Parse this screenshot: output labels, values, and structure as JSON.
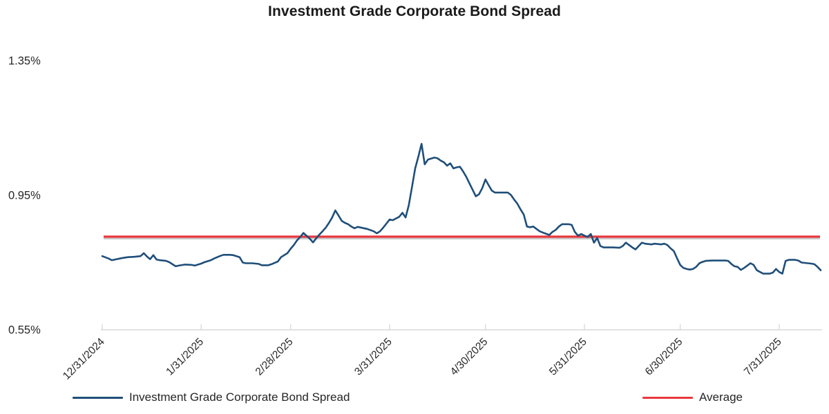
{
  "chart_data": {
    "type": "line",
    "title": "Investment Grade Corporate Bond Spread",
    "legend_position": "bottom",
    "grid": false,
    "x_axis": {
      "type": "date",
      "tick_labels": [
        "12/31/2024",
        "1/31/2025",
        "2/28/2025",
        "3/31/2025",
        "4/30/2025",
        "5/31/2025",
        "6/30/2025",
        "7/31/2025"
      ],
      "range": [
        "12/31/2024",
        "8/13/2025"
      ]
    },
    "y_axis": {
      "unit": "%",
      "ylim": [
        0.55,
        1.35
      ],
      "ticks": [
        {
          "label": "1.35%",
          "value": 1.35
        },
        {
          "label": "0.95%",
          "value": 0.95
        },
        {
          "label": "0.55%",
          "value": 0.55
        }
      ]
    },
    "series": [
      {
        "name": "Investment Grade Corporate Bond Spread",
        "color": "#1f4e79",
        "points": [
          [
            "12/31/2024",
            0.769
          ],
          [
            "1/2/2025",
            0.762
          ],
          [
            "1/3/2025",
            0.757
          ],
          [
            "1/4/2025",
            0.759
          ],
          [
            "1/6/2025",
            0.763
          ],
          [
            "1/8/2025",
            0.766
          ],
          [
            "1/10/2025",
            0.767
          ],
          [
            "1/12/2025",
            0.769
          ],
          [
            "1/13/2025",
            0.778
          ],
          [
            "1/14/2025",
            0.768
          ],
          [
            "1/15/2025",
            0.76
          ],
          [
            "1/16/2025",
            0.772
          ],
          [
            "1/17/2025",
            0.759
          ],
          [
            "1/18/2025",
            0.757
          ],
          [
            "1/20/2025",
            0.755
          ],
          [
            "1/21/2025",
            0.751
          ],
          [
            "1/23/2025",
            0.739
          ],
          [
            "1/24/2025",
            0.741
          ],
          [
            "1/26/2025",
            0.744
          ],
          [
            "1/28/2025",
            0.743
          ],
          [
            "1/29/2025",
            0.741
          ],
          [
            "1/31/2025",
            0.747
          ],
          [
            "2/1/2025",
            0.751
          ],
          [
            "2/3/2025",
            0.757
          ],
          [
            "2/4/2025",
            0.762
          ],
          [
            "2/6/2025",
            0.77
          ],
          [
            "2/7/2025",
            0.773
          ],
          [
            "2/9/2025",
            0.773
          ],
          [
            "2/10/2025",
            0.772
          ],
          [
            "2/12/2025",
            0.766
          ],
          [
            "2/13/2025",
            0.75
          ],
          [
            "2/14/2025",
            0.748
          ],
          [
            "2/16/2025",
            0.748
          ],
          [
            "2/18/2025",
            0.746
          ],
          [
            "2/19/2025",
            0.742
          ],
          [
            "2/21/2025",
            0.742
          ],
          [
            "2/22/2025",
            0.745
          ],
          [
            "2/24/2025",
            0.753
          ],
          [
            "2/25/2025",
            0.766
          ],
          [
            "2/27/2025",
            0.778
          ],
          [
            "2/28/2025",
            0.791
          ],
          [
            "3/1/2025",
            0.802
          ],
          [
            "3/2/2025",
            0.816
          ],
          [
            "3/3/2025",
            0.826
          ],
          [
            "3/4/2025",
            0.838
          ],
          [
            "3/6/2025",
            0.821
          ],
          [
            "3/7/2025",
            0.81
          ],
          [
            "3/8/2025",
            0.822
          ],
          [
            "3/9/2025",
            0.833
          ],
          [
            "3/10/2025",
            0.843
          ],
          [
            "3/11/2025",
            0.854
          ],
          [
            "3/12/2025",
            0.868
          ],
          [
            "3/13/2025",
            0.884
          ],
          [
            "3/14/2025",
            0.905
          ],
          [
            "3/15/2025",
            0.89
          ],
          [
            "3/16/2025",
            0.874
          ],
          [
            "3/17/2025",
            0.868
          ],
          [
            "3/18/2025",
            0.864
          ],
          [
            "3/19/2025",
            0.857
          ],
          [
            "3/20/2025",
            0.852
          ],
          [
            "3/21/2025",
            0.856
          ],
          [
            "3/22/2025",
            0.854
          ],
          [
            "3/23/2025",
            0.852
          ],
          [
            "3/24/2025",
            0.85
          ],
          [
            "3/26/2025",
            0.843
          ],
          [
            "3/27/2025",
            0.837
          ],
          [
            "3/28/2025",
            0.843
          ],
          [
            "3/29/2025",
            0.854
          ],
          [
            "3/30/2025",
            0.866
          ],
          [
            "3/31/2025",
            0.878
          ],
          [
            "4/1/2025",
            0.876
          ],
          [
            "4/2/2025",
            0.881
          ],
          [
            "4/3/2025",
            0.886
          ],
          [
            "4/4/2025",
            0.898
          ],
          [
            "4/5/2025",
            0.884
          ],
          [
            "4/6/2025",
            0.92
          ],
          [
            "4/7/2025",
            0.975
          ],
          [
            "4/8/2025",
            1.03
          ],
          [
            "4/9/2025",
            1.065
          ],
          [
            "4/10/2025",
            1.103
          ],
          [
            "4/11/2025",
            1.042
          ],
          [
            "4/12/2025",
            1.056
          ],
          [
            "4/14/2025",
            1.062
          ],
          [
            "4/15/2025",
            1.06
          ],
          [
            "4/16/2025",
            1.053
          ],
          [
            "4/17/2025",
            1.048
          ],
          [
            "4/18/2025",
            1.038
          ],
          [
            "4/19/2025",
            1.045
          ],
          [
            "4/20/2025",
            1.03
          ],
          [
            "4/21/2025",
            1.033
          ],
          [
            "4/22/2025",
            1.035
          ],
          [
            "4/23/2025",
            1.021
          ],
          [
            "4/24/2025",
            1.005
          ],
          [
            "4/25/2025",
            0.985
          ],
          [
            "4/26/2025",
            0.966
          ],
          [
            "4/27/2025",
            0.947
          ],
          [
            "4/28/2025",
            0.953
          ],
          [
            "4/29/2025",
            0.971
          ],
          [
            "4/30/2025",
            0.997
          ],
          [
            "5/1/2025",
            0.98
          ],
          [
            "5/2/2025",
            0.964
          ],
          [
            "5/3/2025",
            0.958
          ],
          [
            "5/5/2025",
            0.958
          ],
          [
            "5/7/2025",
            0.958
          ],
          [
            "5/8/2025",
            0.951
          ],
          [
            "5/9/2025",
            0.937
          ],
          [
            "5/10/2025",
            0.925
          ],
          [
            "5/11/2025",
            0.908
          ],
          [
            "5/12/2025",
            0.893
          ],
          [
            "5/13/2025",
            0.857
          ],
          [
            "5/14/2025",
            0.855
          ],
          [
            "5/15/2025",
            0.857
          ],
          [
            "5/16/2025",
            0.85
          ],
          [
            "5/17/2025",
            0.843
          ],
          [
            "5/18/2025",
            0.839
          ],
          [
            "5/20/2025",
            0.832
          ],
          [
            "5/21/2025",
            0.841
          ],
          [
            "5/22/2025",
            0.847
          ],
          [
            "5/23/2025",
            0.857
          ],
          [
            "5/24/2025",
            0.864
          ],
          [
            "5/25/2025",
            0.864
          ],
          [
            "5/26/2025",
            0.864
          ],
          [
            "5/27/2025",
            0.862
          ],
          [
            "5/28/2025",
            0.841
          ],
          [
            "5/29/2025",
            0.83
          ],
          [
            "5/30/2025",
            0.835
          ],
          [
            "5/31/2025",
            0.83
          ],
          [
            "6/1/2025",
            0.826
          ],
          [
            "6/2/2025",
            0.835
          ],
          [
            "6/3/2025",
            0.809
          ],
          [
            "6/4/2025",
            0.823
          ],
          [
            "6/5/2025",
            0.799
          ],
          [
            "6/6/2025",
            0.795
          ],
          [
            "6/8/2025",
            0.795
          ],
          [
            "6/9/2025",
            0.795
          ],
          [
            "6/11/2025",
            0.794
          ],
          [
            "6/12/2025",
            0.799
          ],
          [
            "6/13/2025",
            0.809
          ],
          [
            "6/15/2025",
            0.795
          ],
          [
            "6/16/2025",
            0.789
          ],
          [
            "6/17/2025",
            0.799
          ],
          [
            "6/18/2025",
            0.809
          ],
          [
            "6/19/2025",
            0.806
          ],
          [
            "6/21/2025",
            0.804
          ],
          [
            "6/22/2025",
            0.806
          ],
          [
            "6/24/2025",
            0.804
          ],
          [
            "6/25/2025",
            0.806
          ],
          [
            "6/26/2025",
            0.802
          ],
          [
            "6/27/2025",
            0.792
          ],
          [
            "6/28/2025",
            0.784
          ],
          [
            "6/29/2025",
            0.763
          ],
          [
            "6/30/2025",
            0.743
          ],
          [
            "7/1/2025",
            0.734
          ],
          [
            "7/2/2025",
            0.731
          ],
          [
            "7/3/2025",
            0.729
          ],
          [
            "7/4/2025",
            0.731
          ],
          [
            "7/5/2025",
            0.737
          ],
          [
            "7/6/2025",
            0.748
          ],
          [
            "7/7/2025",
            0.752
          ],
          [
            "7/8/2025",
            0.755
          ],
          [
            "7/10/2025",
            0.756
          ],
          [
            "7/12/2025",
            0.756
          ],
          [
            "7/14/2025",
            0.756
          ],
          [
            "7/15/2025",
            0.755
          ],
          [
            "7/16/2025",
            0.746
          ],
          [
            "7/17/2025",
            0.739
          ],
          [
            "7/18/2025",
            0.737
          ],
          [
            "7/19/2025",
            0.728
          ],
          [
            "7/20/2025",
            0.734
          ],
          [
            "7/21/2025",
            0.741
          ],
          [
            "7/22/2025",
            0.748
          ],
          [
            "7/23/2025",
            0.743
          ],
          [
            "7/24/2025",
            0.727
          ],
          [
            "7/25/2025",
            0.722
          ],
          [
            "7/26/2025",
            0.717
          ],
          [
            "7/27/2025",
            0.717
          ],
          [
            "7/28/2025",
            0.717
          ],
          [
            "7/29/2025",
            0.72
          ],
          [
            "7/30/2025",
            0.731
          ],
          [
            "7/31/2025",
            0.722
          ],
          [
            "8/1/2025",
            0.717
          ],
          [
            "8/2/2025",
            0.755
          ],
          [
            "8/3/2025",
            0.758
          ],
          [
            "8/5/2025",
            0.758
          ],
          [
            "8/6/2025",
            0.756
          ],
          [
            "8/7/2025",
            0.75
          ],
          [
            "8/9/2025",
            0.748
          ],
          [
            "8/10/2025",
            0.747
          ],
          [
            "8/11/2025",
            0.745
          ],
          [
            "8/12/2025",
            0.737
          ],
          [
            "8/13/2025",
            0.727
          ]
        ]
      },
      {
        "name": "Average",
        "type": "constant",
        "color": "#e8373d",
        "value": 0.827
      }
    ],
    "colors": {
      "spread_line": "#1f4e79",
      "average_line": "#e8373d",
      "average_shadow": "#c9c9c9",
      "axis": "#d9d9d9",
      "tick_text": "#262626",
      "title_text": "#1a1a1a"
    }
  }
}
